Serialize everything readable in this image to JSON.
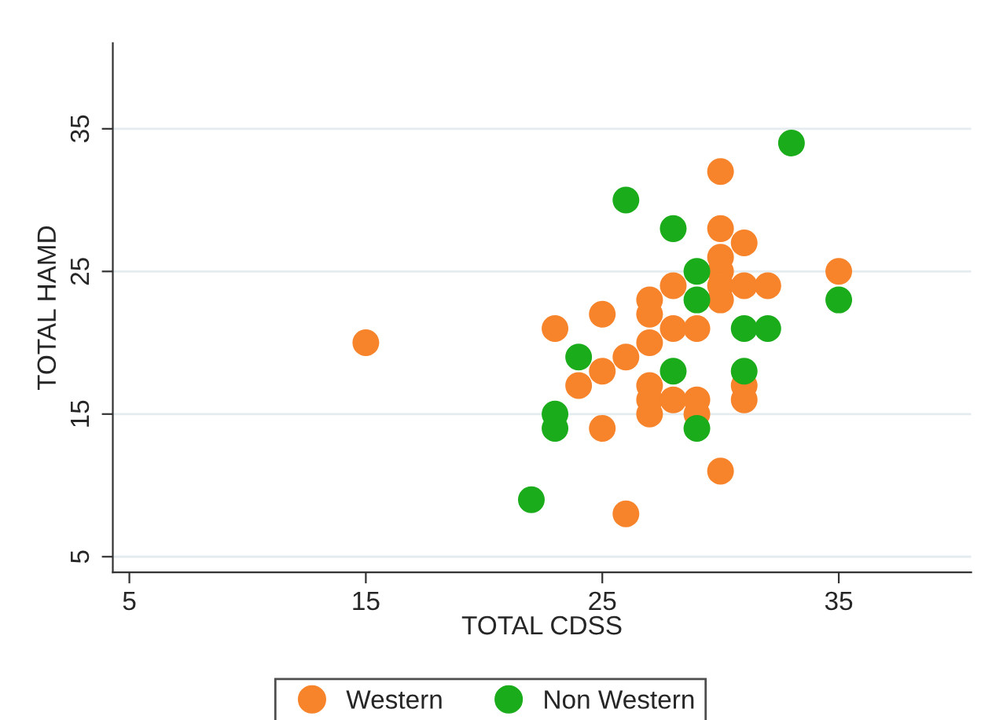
{
  "chart_data": {
    "type": "scatter",
    "xlabel": "TOTAL CDSS",
    "ylabel": "TOTAL HAMD",
    "xlim": [
      4.3,
      40.6
    ],
    "ylim": [
      3.9,
      41
    ],
    "xticks": [
      5,
      15,
      25,
      35
    ],
    "yticks": [
      5,
      15,
      25,
      35
    ],
    "grid": "y",
    "legend": "bottom",
    "marker": "circle",
    "series": [
      {
        "name": "Western",
        "color": "#f7832a",
        "x": [
          15,
          23,
          24,
          25,
          25,
          25,
          26,
          26,
          27,
          27,
          27,
          27,
          27,
          27,
          28,
          28,
          28,
          29,
          29,
          29,
          30,
          30,
          30,
          30,
          30,
          30,
          30,
          31,
          31,
          31,
          31,
          32,
          35
        ],
        "values": [
          20,
          21,
          17,
          22,
          18,
          14,
          19,
          8,
          23,
          22,
          20,
          17,
          16,
          15,
          24,
          21,
          16,
          21,
          16,
          15,
          32,
          28,
          26,
          25,
          24,
          23,
          11,
          27,
          24,
          17,
          16,
          24,
          25
        ]
      },
      {
        "name": "Non Western",
        "color": "#1aac1a",
        "x": [
          22,
          23,
          23,
          24,
          26,
          28,
          28,
          29,
          29,
          29,
          31,
          31,
          32,
          33,
          35
        ],
        "values": [
          9,
          15,
          14,
          19,
          30,
          28,
          18,
          25,
          23,
          14,
          21,
          18,
          21,
          34,
          23
        ]
      }
    ]
  }
}
